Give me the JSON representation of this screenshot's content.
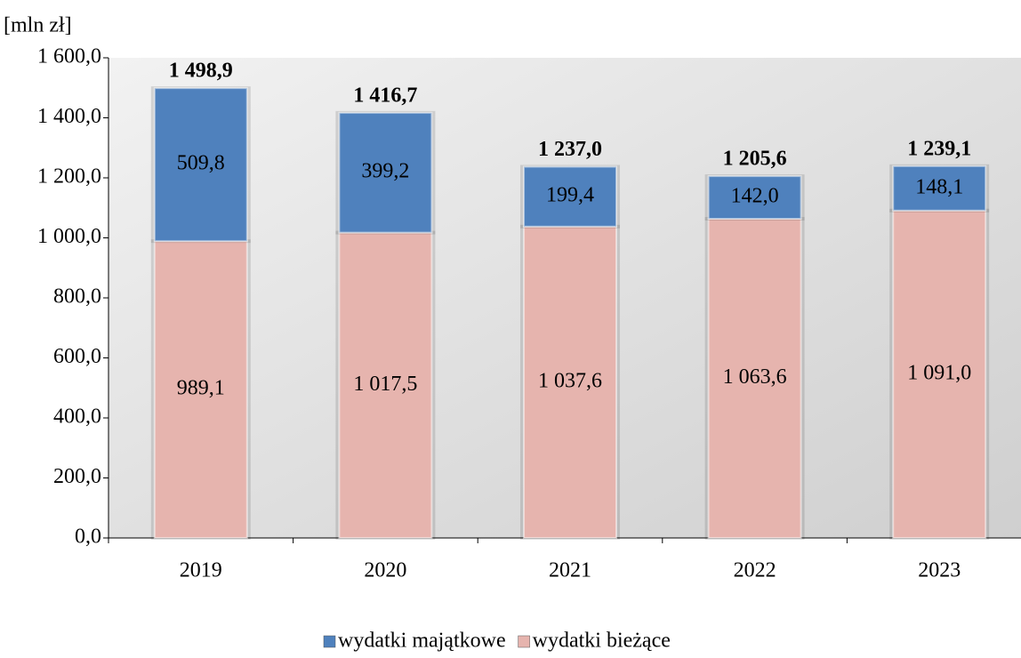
{
  "chart_data": {
    "type": "stacked_bar",
    "y_axis_label": "[mln zł]",
    "categories": [
      "2019",
      "2020",
      "2021",
      "2022",
      "2023"
    ],
    "series": [
      {
        "name": "wydatki majątkowe",
        "color": "#4f81bd",
        "values": [
          509.8,
          399.2,
          199.4,
          142.0,
          148.1
        ],
        "value_labels": [
          "509,8",
          "399,2",
          "199,4",
          "142,0",
          "148,1"
        ]
      },
      {
        "name": "wydatki bieżące",
        "color": "#e6b4ae",
        "values": [
          989.1,
          1017.5,
          1037.6,
          1063.6,
          1091.0
        ],
        "value_labels": [
          "989,1",
          "1 017,5",
          "1 037,6",
          "1 063,6",
          "1 091,0"
        ]
      }
    ],
    "totals": [
      1498.9,
      1416.7,
      1237.0,
      1205.6,
      1239.1
    ],
    "total_labels": [
      "1 498,9",
      "1 416,7",
      "1 237,0",
      "1 205,6",
      "1 239,1"
    ],
    "ylim": [
      0,
      1600
    ],
    "yticks": [
      {
        "value": 0,
        "label": "0,0"
      },
      {
        "value": 200,
        "label": "200,0"
      },
      {
        "value": 400,
        "label": "400,0"
      },
      {
        "value": 600,
        "label": "600,0"
      },
      {
        "value": 800,
        "label": "800,0"
      },
      {
        "value": 1000,
        "label": "1 000,0"
      },
      {
        "value": 1200,
        "label": "1 200,0"
      },
      {
        "value": 1400,
        "label": "1 400,0"
      },
      {
        "value": 1600,
        "label": "1 600,0"
      }
    ],
    "legend": "bottom"
  }
}
